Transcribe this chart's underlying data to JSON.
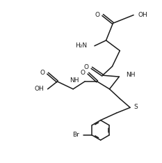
{
  "bg_color": "#ffffff",
  "line_color": "#1a1a1a",
  "line_width": 1.1,
  "font_size": 6.5,
  "figsize": [
    2.33,
    2.34
  ],
  "dpi": 100,
  "xlim": [
    0,
    10
  ],
  "ylim": [
    0,
    10
  ]
}
